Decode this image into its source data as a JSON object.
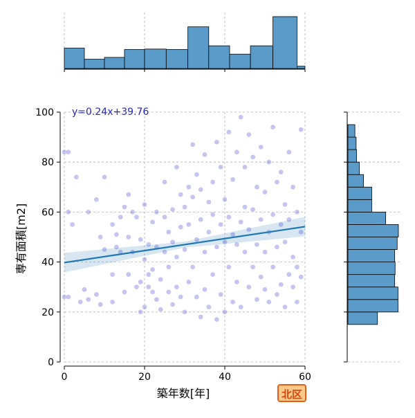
{
  "chart_data": {
    "type": "scatter",
    "title": "",
    "xlabel": "築年数[年]",
    "ylabel": "専有面積[m2]",
    "xlim": [
      0,
      60
    ],
    "ylim": [
      0,
      100
    ],
    "x_ticks": [
      0,
      20,
      40,
      60
    ],
    "y_ticks": [
      0,
      20,
      40,
      60,
      80,
      100
    ],
    "grid": true,
    "regression": {
      "label": "y=0.24x+39.76",
      "slope": 0.24,
      "intercept": 39.76,
      "color": "#1f77b4"
    },
    "marginal_x_histogram": {
      "bin_edges": [
        0,
        5,
        10,
        15,
        20,
        25.4,
        30.8,
        36,
        41.2,
        46.4,
        52,
        58,
        60
      ],
      "counts": [
        4.4,
        2.0,
        2.4,
        4.1,
        4.2,
        4.1,
        9.0,
        4.9,
        3.1,
        4.9,
        11.2,
        0.5
      ]
    },
    "marginal_y_histogram": {
      "bin_edges": [
        0,
        15,
        20,
        25,
        30,
        35,
        40,
        45,
        50,
        55,
        60,
        65,
        70,
        75,
        80,
        85,
        90,
        95,
        100
      ],
      "counts": [
        0,
        7.2,
        12.2,
        12.2,
        11.4,
        11.5,
        11.4,
        12.0,
        12.3,
        9.2,
        5.8,
        5.8,
        3.8,
        2.8,
        2.1,
        2.0,
        1.7,
        0
      ],
      "color": "#5b9bc9"
    },
    "point_color": "#5a5ad0",
    "points": [
      [
        0,
        26
      ],
      [
        1,
        26
      ],
      [
        1,
        60
      ],
      [
        0,
        84
      ],
      [
        1,
        84
      ],
      [
        2,
        55
      ],
      [
        3,
        74
      ],
      [
        4,
        24
      ],
      [
        5,
        29
      ],
      [
        6,
        25
      ],
      [
        6,
        60
      ],
      [
        8,
        27
      ],
      [
        8,
        65
      ],
      [
        9,
        23
      ],
      [
        9,
        50
      ],
      [
        10,
        45
      ],
      [
        10,
        74
      ],
      [
        12,
        24
      ],
      [
        12,
        35
      ],
      [
        12,
        55
      ],
      [
        13,
        46
      ],
      [
        13,
        51
      ],
      [
        14,
        44
      ],
      [
        14,
        58
      ],
      [
        15,
        28
      ],
      [
        15,
        62
      ],
      [
        16,
        35
      ],
      [
        16,
        50
      ],
      [
        16,
        67
      ],
      [
        17,
        44
      ],
      [
        17,
        60
      ],
      [
        18,
        30
      ],
      [
        18,
        58
      ],
      [
        19,
        20
      ],
      [
        19,
        32
      ],
      [
        19,
        49
      ],
      [
        20,
        22
      ],
      [
        20,
        41
      ],
      [
        20,
        63
      ],
      [
        21,
        30
      ],
      [
        21,
        35
      ],
      [
        21,
        47
      ],
      [
        22,
        28
      ],
      [
        22,
        37
      ],
      [
        22,
        56
      ],
      [
        23,
        25
      ],
      [
        23,
        46
      ],
      [
        23,
        60
      ],
      [
        24,
        21
      ],
      [
        24,
        33
      ],
      [
        25,
        44
      ],
      [
        25,
        58
      ],
      [
        25,
        72
      ],
      [
        26,
        28
      ],
      [
        26,
        38
      ],
      [
        26,
        52
      ],
      [
        27,
        23
      ],
      [
        27,
        48
      ],
      [
        27,
        61
      ],
      [
        28,
        30
      ],
      [
        28,
        42
      ],
      [
        28,
        78
      ],
      [
        29,
        26
      ],
      [
        29,
        54
      ],
      [
        29,
        67
      ],
      [
        30,
        20
      ],
      [
        30,
        45
      ],
      [
        30,
        62
      ],
      [
        31,
        32
      ],
      [
        31,
        55
      ],
      [
        31,
        70
      ],
      [
        32,
        38
      ],
      [
        32,
        66
      ],
      [
        32,
        87
      ],
      [
        33,
        26
      ],
      [
        33,
        49
      ],
      [
        33,
        75
      ],
      [
        34,
        18
      ],
      [
        34,
        57
      ],
      [
        34,
        69
      ],
      [
        35,
        29
      ],
      [
        35,
        44
      ],
      [
        35,
        83
      ],
      [
        36,
        22
      ],
      [
        36,
        52
      ],
      [
        36,
        64
      ],
      [
        37,
        35
      ],
      [
        37,
        59
      ],
      [
        37,
        72
      ],
      [
        38,
        17
      ],
      [
        38,
        46
      ],
      [
        38,
        88
      ],
      [
        39,
        27
      ],
      [
        39,
        55
      ],
      [
        39,
        78
      ],
      [
        40,
        20
      ],
      [
        40,
        48
      ],
      [
        40,
        65
      ],
      [
        41,
        38
      ],
      [
        41,
        58
      ],
      [
        41,
        92
      ],
      [
        42,
        24
      ],
      [
        42,
        51
      ],
      [
        42,
        73
      ],
      [
        43,
        32
      ],
      [
        43,
        47
      ],
      [
        43,
        84
      ],
      [
        44,
        22
      ],
      [
        44,
        56
      ],
      [
        44,
        98
      ],
      [
        45,
        44
      ],
      [
        45,
        62
      ],
      [
        45,
        78
      ],
      [
        46,
        30
      ],
      [
        46,
        53
      ],
      [
        46,
        91
      ],
      [
        47,
        38
      ],
      [
        47,
        61
      ],
      [
        47,
        82
      ],
      [
        48,
        25
      ],
      [
        48,
        47
      ],
      [
        48,
        70
      ],
      [
        49,
        34
      ],
      [
        49,
        57
      ],
      [
        49,
        86
      ],
      [
        50,
        29
      ],
      [
        50,
        44
      ],
      [
        50,
        68
      ],
      [
        51,
        24
      ],
      [
        51,
        52
      ],
      [
        51,
        80
      ],
      [
        52,
        38
      ],
      [
        52,
        59
      ],
      [
        52,
        94
      ],
      [
        53,
        27
      ],
      [
        53,
        46
      ],
      [
        53,
        72
      ],
      [
        54,
        31
      ],
      [
        54,
        55
      ],
      [
        54,
        76
      ],
      [
        55,
        22
      ],
      [
        55,
        48
      ],
      [
        55,
        63
      ],
      [
        56,
        35
      ],
      [
        56,
        57
      ],
      [
        56,
        84
      ],
      [
        57,
        30
      ],
      [
        57,
        42
      ],
      [
        57,
        70
      ],
      [
        58,
        24
      ],
      [
        58,
        38
      ],
      [
        58,
        60
      ],
      [
        59,
        34
      ],
      [
        59,
        52
      ],
      [
        59,
        93
      ]
    ]
  },
  "badge": {
    "label": "北区",
    "bg_color": "#fcc98a",
    "border_color": "#e0601a",
    "text_color": "#d2460f"
  }
}
